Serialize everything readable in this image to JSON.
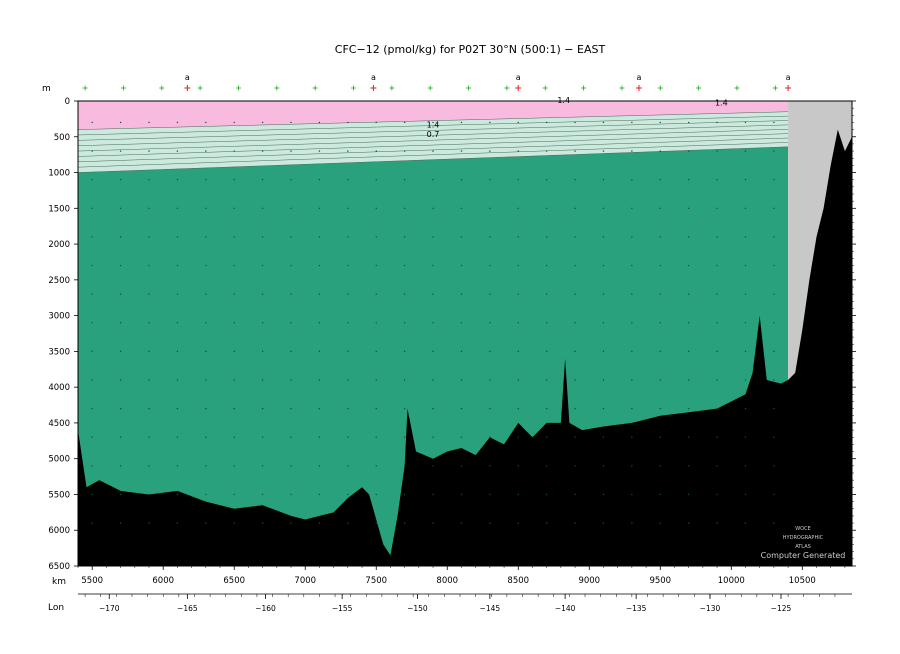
{
  "chart_data": {
    "type": "heatmap",
    "title": "CFC−12 (pmol/kg) for P02T 30°N (500:1) − EAST",
    "x_unit_label": "km",
    "y_unit_label": "m",
    "lon_label": "Lon",
    "x_range": [
      5400,
      10850
    ],
    "y_range": [
      0,
      6500
    ],
    "x_ticks": [
      5500,
      6000,
      6500,
      7000,
      7500,
      8000,
      8500,
      9000,
      9500,
      10000,
      10500
    ],
    "y_ticks": [
      0,
      500,
      1000,
      1500,
      2000,
      2500,
      3000,
      3500,
      4000,
      4500,
      5000,
      5500,
      6000,
      6500
    ],
    "lon_ticks": [
      {
        "lon": "−170",
        "km": 5620
      },
      {
        "lon": "−165",
        "km": 6170
      },
      {
        "lon": "−160",
        "km": 6720
      },
      {
        "lon": "−155",
        "km": 7260
      },
      {
        "lon": "−150",
        "km": 7790
      },
      {
        "lon": "−145",
        "km": 8300
      },
      {
        "lon": "−140",
        "km": 8830
      },
      {
        "lon": "−135",
        "km": 9330
      },
      {
        "lon": "−130",
        "km": 9850
      },
      {
        "lon": "−125",
        "km": 10350
      }
    ],
    "station_markers": [
      {
        "label": "a",
        "km": 6170
      },
      {
        "label": "a",
        "km": 7480
      },
      {
        "label": "a",
        "km": 8500
      },
      {
        "label": "a",
        "km": 9350
      },
      {
        "label": "a",
        "km": 10400
      }
    ],
    "contour_labels": [
      "1.4",
      "1.4",
      "1.4",
      "0.7"
    ],
    "colors": {
      "high": "#f8bbdf",
      "mid": "#cbe9dc",
      "low": "#2aa17d",
      "bathymetry": "#000000",
      "land_mask": "#c8c8c8",
      "station_plus": "#1aaa1a",
      "station_plus_red": "#e02020"
    },
    "watermark": [
      "WOCE",
      "HYDROGRAPHIC",
      "ATLAS",
      "Computer Generated"
    ]
  }
}
